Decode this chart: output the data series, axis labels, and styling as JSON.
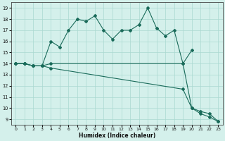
{
  "xlabel": "Humidex (Indice chaleur)",
  "bg_color": "#d4f0eb",
  "line_color": "#1a6b5a",
  "grid_color": "#aad8d0",
  "xlim": [
    -0.5,
    23.5
  ],
  "ylim": [
    8.5,
    19.5
  ],
  "xticks": [
    0,
    1,
    2,
    3,
    4,
    5,
    6,
    7,
    8,
    9,
    10,
    11,
    12,
    13,
    14,
    15,
    16,
    17,
    18,
    19,
    20,
    21,
    22,
    23
  ],
  "yticks": [
    9,
    10,
    11,
    12,
    13,
    14,
    15,
    16,
    17,
    18,
    19
  ],
  "line1_x": [
    0,
    1,
    2,
    3,
    4,
    5,
    6,
    7,
    8,
    9,
    10,
    11,
    12,
    13,
    14,
    15,
    16,
    17,
    18,
    19,
    20
  ],
  "line1_y": [
    14.0,
    14.0,
    13.8,
    13.8,
    16.0,
    15.5,
    17.0,
    18.0,
    17.8,
    18.3,
    17.0,
    16.2,
    17.0,
    17.0,
    17.5,
    19.0,
    17.2,
    16.5,
    17.0,
    14.0,
    15.2
  ],
  "line2_x": [
    0,
    1,
    2,
    3,
    4,
    19,
    20,
    21,
    22,
    23
  ],
  "line2_y": [
    14.0,
    14.0,
    13.8,
    13.8,
    14.0,
    14.0,
    10.0,
    9.7,
    9.5,
    8.8
  ],
  "line3_x": [
    0,
    1,
    2,
    3,
    4,
    19,
    20,
    21,
    22,
    23
  ],
  "line3_y": [
    14.0,
    14.0,
    13.8,
    13.8,
    13.6,
    11.7,
    10.0,
    9.5,
    9.2,
    8.8
  ]
}
